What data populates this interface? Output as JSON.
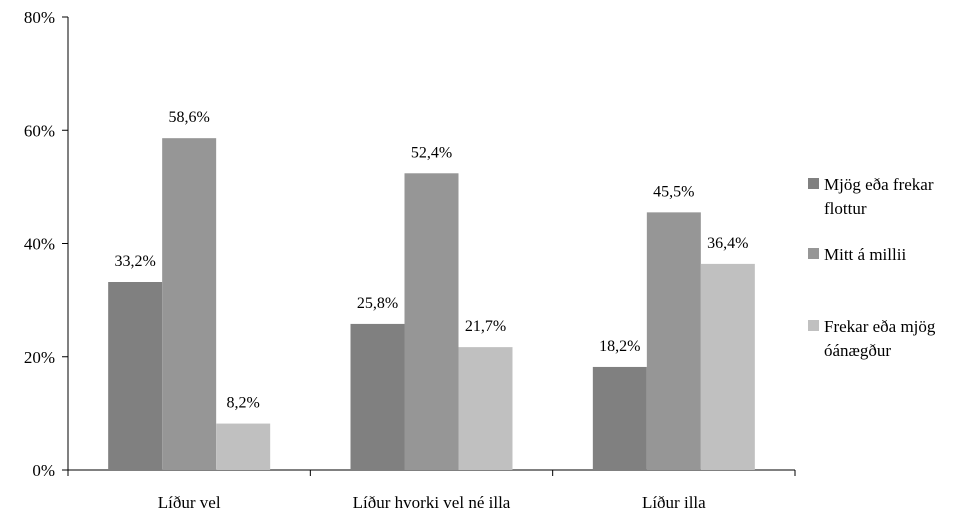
{
  "chart_data": {
    "type": "bar",
    "categories": [
      "Líður vel",
      "Líður hvorki vel né illa",
      "Líður illa"
    ],
    "series": [
      {
        "name": "Mjög eða frekar flottur",
        "name_lines": [
          "Mjög eða frekar",
          "flottur"
        ],
        "color": "#808080",
        "values": [
          33.2,
          25.8,
          18.2
        ],
        "labels": [
          "33,2%",
          "25,8%",
          "18,2%"
        ]
      },
      {
        "name": "Mitt á millii",
        "name_lines": [
          "Mitt á millii"
        ],
        "color": "#969696",
        "values": [
          58.6,
          52.4,
          45.5
        ],
        "labels": [
          "58,6%",
          "52,4%",
          "45,5%"
        ]
      },
      {
        "name": "Frekar eða mjög óánægður",
        "name_lines": [
          "Frekar eða mjög",
          "óánægður"
        ],
        "color": "#c0c0c0",
        "values": [
          8.2,
          21.7,
          36.4
        ],
        "labels": [
          "8,2%",
          "21,7%",
          "36,4%"
        ]
      }
    ],
    "ylim": [
      0,
      80
    ],
    "yticks": [
      0,
      20,
      40,
      60,
      80
    ],
    "ytick_labels": [
      "0%",
      "20%",
      "40%",
      "60%",
      "80%"
    ],
    "grid": false,
    "legend_position": "right"
  }
}
